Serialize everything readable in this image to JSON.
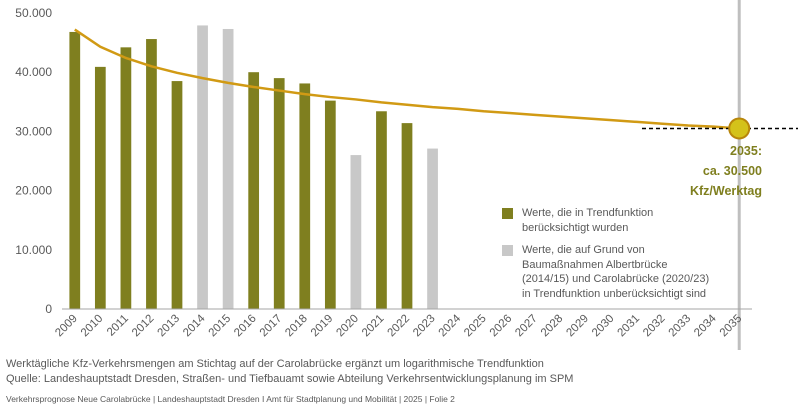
{
  "chart_data": {
    "type": "bar",
    "categories": [
      "2009",
      "2010",
      "2011",
      "2012",
      "2013",
      "2014",
      "2015",
      "2016",
      "2017",
      "2018",
      "2019",
      "2020",
      "2021",
      "2022",
      "2023",
      "2024",
      "2025",
      "2026",
      "2027",
      "2028",
      "2029",
      "2030",
      "2031",
      "2032",
      "2033",
      "2034",
      "2035"
    ],
    "series": [
      {
        "name": "Werte, die in Trendfunktion berücksichtigt wurden",
        "color": "#7f7f1f",
        "values": [
          46800,
          40900,
          44200,
          45600,
          38500,
          null,
          null,
          40000,
          39000,
          38100,
          35200,
          null,
          33400,
          31400,
          null,
          null,
          null,
          null,
          null,
          null,
          null,
          null,
          null,
          null,
          null,
          null,
          null
        ]
      },
      {
        "name": "Werte, die auf Grund von Baumaßnahmen Albertbrücke (2014/15) und Carolabrücke (2020/23) in Trendfunktion unberücksichtigt sind",
        "color": "#c8c8c8",
        "values": [
          null,
          null,
          null,
          null,
          null,
          47900,
          47300,
          null,
          null,
          null,
          null,
          26000,
          null,
          null,
          27100,
          null,
          null,
          null,
          null,
          null,
          null,
          null,
          null,
          null,
          null,
          null,
          null
        ]
      },
      {
        "name": "Trend",
        "line": true,
        "color": "#d19a14",
        "values": [
          47200,
          44300,
          42400,
          41000,
          39900,
          39000,
          38200,
          37500,
          36900,
          36300,
          35800,
          35400,
          34900,
          34500,
          34100,
          33800,
          33400,
          33100,
          32800,
          32500,
          32200,
          31900,
          31600,
          31300,
          31000,
          30800,
          30500
        ]
      }
    ],
    "ylim": [
      0,
      50000
    ],
    "yticks": [
      "0",
      "10.000",
      "20.000",
      "30.000",
      "40.000",
      "50.000"
    ],
    "grid": false,
    "legend_position": "lower-right",
    "annotation": {
      "x": "2035",
      "y": 30500,
      "lines": [
        "2035:",
        "ca. 30.500",
        "Kfz/Werktag"
      ],
      "marker_color": "#d4c21a"
    }
  },
  "legend": {
    "item1": "Werte,  die in Trendfunktion\nberücksichtigt wurden",
    "item2": "Werte,  die auf Grund von\nBaumaßnahmen Albertbrücke\n(2014/15) und Carolabrücke (2020/23)\nin Trendfunktion unberücksichtigt sind"
  },
  "caption": {
    "line1": "Werktägliche Kfz-Verkehrsmengen  am Stichtag auf der  Carolabrücke ergänzt um  logarithmische Trendfunktion",
    "line2": "Quelle: Landeshauptstadt Dresden, Straßen- und Tiefbauamt sowie Abteilung Verkehrsentwicklungsplanung im SPM"
  },
  "footer": "Verkehrsprognose Neue Carolabrücke  |  Landeshauptstadt Dresden I Amt für Stadtplanung und Mobilität  |  2025  |  Folie 2",
  "colors": {
    "axis_text": "#595959",
    "axis_line": "#a6a6a6",
    "reference_line": "#bfbfbf",
    "annotation_text": "#7f7f1f"
  }
}
